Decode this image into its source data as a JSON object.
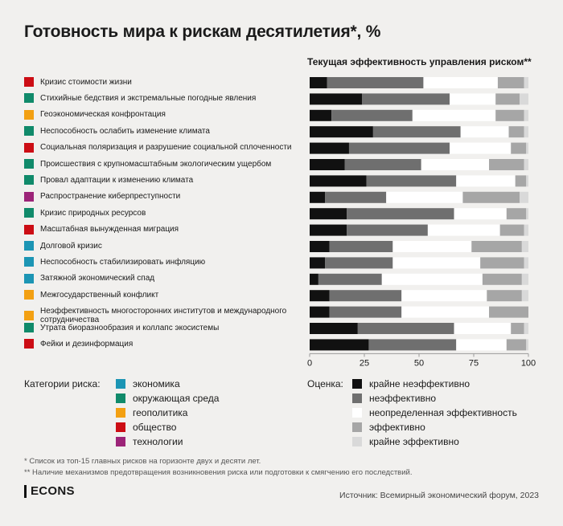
{
  "title": "Готовность мира к рискам десятилетия*, %",
  "chart_data": {
    "type": "bar",
    "orientation": "horizontal",
    "stacked": "100%",
    "title": "Текущая эффективность управления риском**",
    "xlim": [
      0,
      100
    ],
    "x_ticks": [
      "0",
      "25",
      "50",
      "75",
      "100"
    ],
    "categories": [
      "Кризис стоимости жизни",
      "Стихийные бедствия и экстремальные погодные явления",
      "Геоэкономическая конфронтация",
      "Неспособность ослабить изменение климата",
      "Социальная поляризация и разрушение социальной сплоченности",
      "Происшествия с крупномасштабным экологическим ущербом",
      "Провал адаптации к изменению климата",
      "Распространение киберпреступности",
      "Кризис природных ресурсов",
      "Масштабная вынужденная миграция",
      "Долговой кризис",
      "Неспособность стабилизировать инфляцию",
      "Затяжной экономический спад",
      "Межгосударственный конфликт",
      "Неэффективность многосторонних институтов и международного сотрудничества",
      "Утрата биоразнообразия и коллапс экосистемы",
      "Фейки и дезинформация"
    ],
    "risk_category": [
      "society",
      "environment",
      "geopolitics",
      "environment",
      "society",
      "environment",
      "environment",
      "technology",
      "environment",
      "society",
      "economy",
      "economy",
      "economy",
      "geopolitics",
      "geopolitics",
      "environment",
      "society"
    ],
    "series": [
      {
        "name": "крайне неэффективно",
        "color": "#111111",
        "values": [
          8,
          24,
          10,
          29,
          18,
          16,
          26,
          7,
          17,
          17,
          9,
          7,
          4,
          9,
          9,
          22,
          27
        ]
      },
      {
        "name": "неэффективно",
        "color": "#6f6f6f",
        "values": [
          44,
          40,
          37,
          40,
          46,
          35,
          41,
          28,
          49,
          37,
          29,
          31,
          29,
          33,
          33,
          44,
          40
        ]
      },
      {
        "name": "неопределенная эффективность",
        "color": "#ffffff",
        "values": [
          34,
          21,
          38,
          22,
          28,
          31,
          27,
          35,
          24,
          33,
          36,
          40,
          46,
          39,
          40,
          26,
          23
        ]
      },
      {
        "name": "эффективно",
        "color": "#a6a6a6",
        "values": [
          12,
          11,
          13,
          7,
          7,
          16,
          5,
          26,
          9,
          11,
          23,
          20,
          18,
          16,
          18,
          6,
          9
        ]
      },
      {
        "name": "крайне эффективно",
        "color": "#d9d9d9",
        "values": [
          2,
          4,
          2,
          2,
          1,
          2,
          1,
          4,
          1,
          2,
          3,
          2,
          3,
          3,
          0,
          2,
          1
        ]
      }
    ]
  },
  "risk_legend": {
    "title": "Категории риска:",
    "items": [
      {
        "key": "economy",
        "label": "экономика",
        "color": "#1c95b4"
      },
      {
        "key": "environment",
        "label": "окружающая среда",
        "color": "#108a6a"
      },
      {
        "key": "geopolitics",
        "label": "геополитика",
        "color": "#f3a012"
      },
      {
        "key": "society",
        "label": "общество",
        "color": "#cc0d14"
      },
      {
        "key": "technology",
        "label": "технологии",
        "color": "#9c2478"
      }
    ]
  },
  "rating_legend": {
    "title": "Оценка:"
  },
  "footnotes": [
    "* Список из топ-15 главных рисков на горизонте двух и десяти лет.",
    "** Наличие механизмов предотвращения возникновения риска или подготовки к смягчению его последствий."
  ],
  "logo": "ECONS",
  "source": "Источник: Всемирный экономический форум, 2023"
}
